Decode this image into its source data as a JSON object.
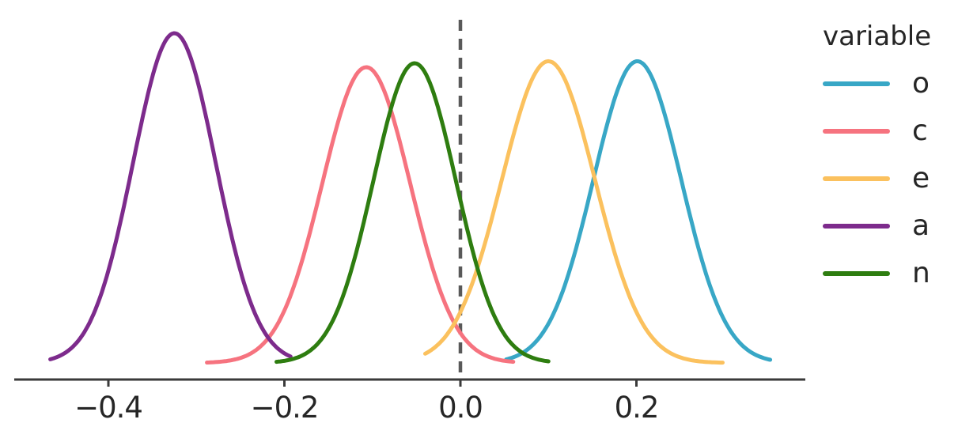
{
  "chart_data": {
    "type": "line",
    "subtype": "kde_density",
    "title": "",
    "xlabel": "",
    "ylabel": "",
    "grid": false,
    "xlim": [
      -0.507,
      0.392
    ],
    "x_ticks": [
      -0.4,
      -0.2,
      0.0,
      0.2
    ],
    "x_tick_labels": [
      "−0.4",
      "−0.2",
      "0.0",
      "0.2"
    ],
    "reference_line": {
      "x": 0.0,
      "style": "dashed",
      "color": "#595959"
    },
    "legend": {
      "title": "variable",
      "position": "right"
    },
    "series": [
      {
        "name": "o",
        "color": "#38A7C6",
        "peak_x": 0.201,
        "sd": 0.05,
        "peak_height": 0.915,
        "x_range": [
          0.052,
          0.352
        ]
      },
      {
        "name": "c",
        "color": "#F6737F",
        "peak_x": -0.107,
        "sd": 0.05,
        "peak_height": 0.897,
        "x_range": [
          -0.288,
          0.06
        ]
      },
      {
        "name": "e",
        "color": "#FBC15E",
        "peak_x": 0.1,
        "sd": 0.053,
        "peak_height": 0.915,
        "x_range": [
          -0.04,
          0.298
        ]
      },
      {
        "name": "a",
        "color": "#7D2B8C",
        "peak_x": -0.325,
        "sd": 0.047,
        "peak_height": 1.0,
        "x_range": [
          -0.466,
          -0.193
        ]
      },
      {
        "name": "n",
        "color": "#2E7D10",
        "peak_x": -0.052,
        "sd": 0.047,
        "peak_height": 0.909,
        "x_range": [
          -0.209,
          0.1
        ]
      }
    ],
    "colors": {
      "axis": "#3A3A3A",
      "tick_text": "#262626"
    }
  }
}
